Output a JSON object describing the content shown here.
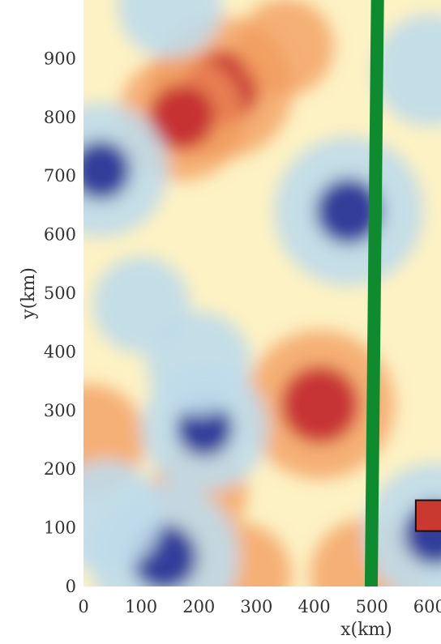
{
  "chart_data": {
    "type": "heatmap",
    "title": "",
    "xlabel": "x(km)",
    "ylabel": "y(km)",
    "xlim": [
      0,
      620
    ],
    "ylim": [
      0,
      1000
    ],
    "x_ticks": [
      "0",
      "100",
      "200",
      "300",
      "400",
      "500",
      "600"
    ],
    "x_tick_values": [
      0,
      100,
      200,
      300,
      400,
      500,
      600
    ],
    "y_ticks": [
      "0",
      "100",
      "200",
      "300",
      "400",
      "500",
      "600",
      "700",
      "800",
      "900"
    ],
    "y_tick_values": [
      0,
      100,
      200,
      300,
      400,
      500,
      600,
      700,
      800,
      900
    ],
    "colormap": "RdYlBu",
    "colors": {
      "red": "#c2272d",
      "orange": "#f29a5c",
      "pale": "#fdf2c4",
      "light_blue": "#bfdaea",
      "blue": "#2c3596",
      "line": "#0e8a2f",
      "box_fill": "#c9392f"
    },
    "anomalies": [
      {
        "kind": "high",
        "x": 240,
        "y": 850,
        "strength": 0.9
      },
      {
        "kind": "high",
        "x": 170,
        "y": 800,
        "strength": 0.7
      },
      {
        "kind": "high",
        "x": 410,
        "y": 310,
        "strength": 1.0
      },
      {
        "kind": "high",
        "x": 350,
        "y": 920,
        "strength": 0.3
      },
      {
        "kind": "high",
        "x": 10,
        "y": 250,
        "strength": 0.5
      },
      {
        "kind": "high",
        "x": 270,
        "y": 20,
        "strength": 0.4
      },
      {
        "kind": "high",
        "x": 490,
        "y": 20,
        "strength": 0.5
      },
      {
        "kind": "high",
        "x": 200,
        "y": 160,
        "strength": 0.3
      },
      {
        "kind": "low",
        "x": 460,
        "y": 640,
        "strength": 1.0
      },
      {
        "kind": "low",
        "x": 30,
        "y": 710,
        "strength": 0.8
      },
      {
        "kind": "low",
        "x": 140,
        "y": 50,
        "strength": 1.0
      },
      {
        "kind": "low",
        "x": 210,
        "y": 270,
        "strength": 0.7
      },
      {
        "kind": "low",
        "x": 200,
        "y": 380,
        "strength": 0.4
      },
      {
        "kind": "low",
        "x": 610,
        "y": 90,
        "strength": 0.9
      },
      {
        "kind": "low",
        "x": 150,
        "y": 990,
        "strength": 0.4
      },
      {
        "kind": "low",
        "x": 40,
        "y": 120,
        "strength": 0.5
      },
      {
        "kind": "low",
        "x": 600,
        "y": 880,
        "strength": 0.5
      },
      {
        "kind": "low",
        "x": 100,
        "y": 480,
        "strength": 0.3
      }
    ],
    "line_profile": {
      "x_start": 510,
      "y_start": 1010,
      "x_end": 498,
      "y_end": -90
    },
    "marker_box": {
      "x": 610,
      "y": 60
    }
  }
}
